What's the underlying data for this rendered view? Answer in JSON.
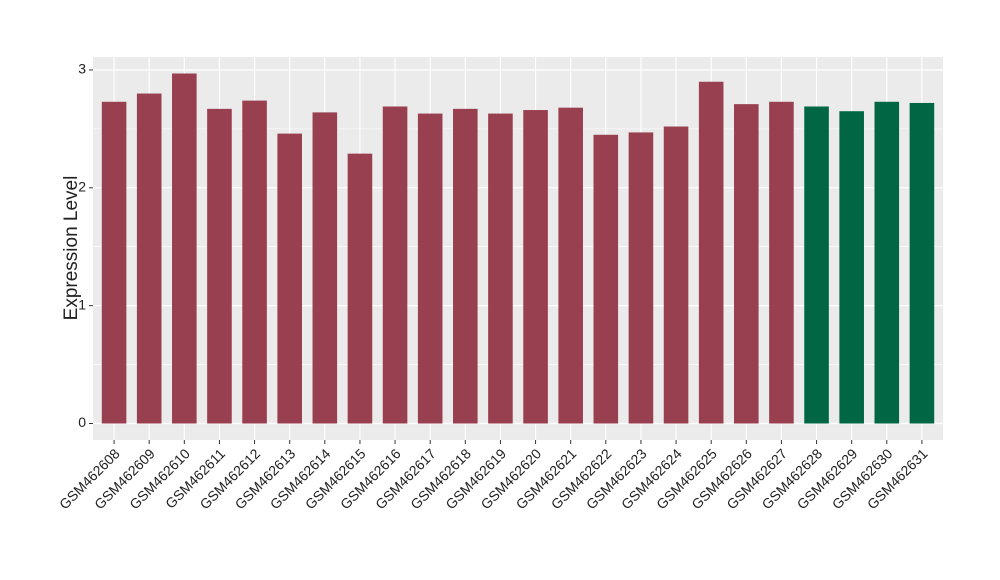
{
  "chart_data": {
    "type": "bar",
    "y_label": "Expression Level",
    "categories": [
      "GSM462608",
      "GSM462609",
      "GSM462610",
      "GSM462611",
      "GSM462612",
      "GSM462613",
      "GSM462614",
      "GSM462615",
      "GSM462616",
      "GSM462617",
      "GSM462618",
      "GSM462619",
      "GSM462620",
      "GSM462621",
      "GSM462622",
      "GSM462623",
      "GSM462624",
      "GSM462625",
      "GSM462626",
      "GSM462627",
      "GSM462628",
      "GSM462629",
      "GSM462630",
      "GSM462631"
    ],
    "values": [
      2.73,
      2.8,
      2.97,
      2.67,
      2.74,
      2.46,
      2.64,
      2.29,
      2.69,
      2.63,
      2.67,
      2.63,
      2.66,
      2.68,
      2.45,
      2.47,
      2.52,
      2.9,
      2.71,
      2.73,
      2.69,
      2.65,
      2.73,
      2.72
    ],
    "colors": [
      "#994050",
      "#994050",
      "#994050",
      "#994050",
      "#994050",
      "#994050",
      "#994050",
      "#994050",
      "#994050",
      "#994050",
      "#994050",
      "#994050",
      "#994050",
      "#994050",
      "#994050",
      "#994050",
      "#994050",
      "#994050",
      "#994050",
      "#994050",
      "#006644",
      "#006644",
      "#006644",
      "#006644"
    ],
    "ylim": [
      -0.14,
      3.11
    ],
    "yticks": [
      0,
      1,
      2,
      3
    ],
    "grid": true
  }
}
